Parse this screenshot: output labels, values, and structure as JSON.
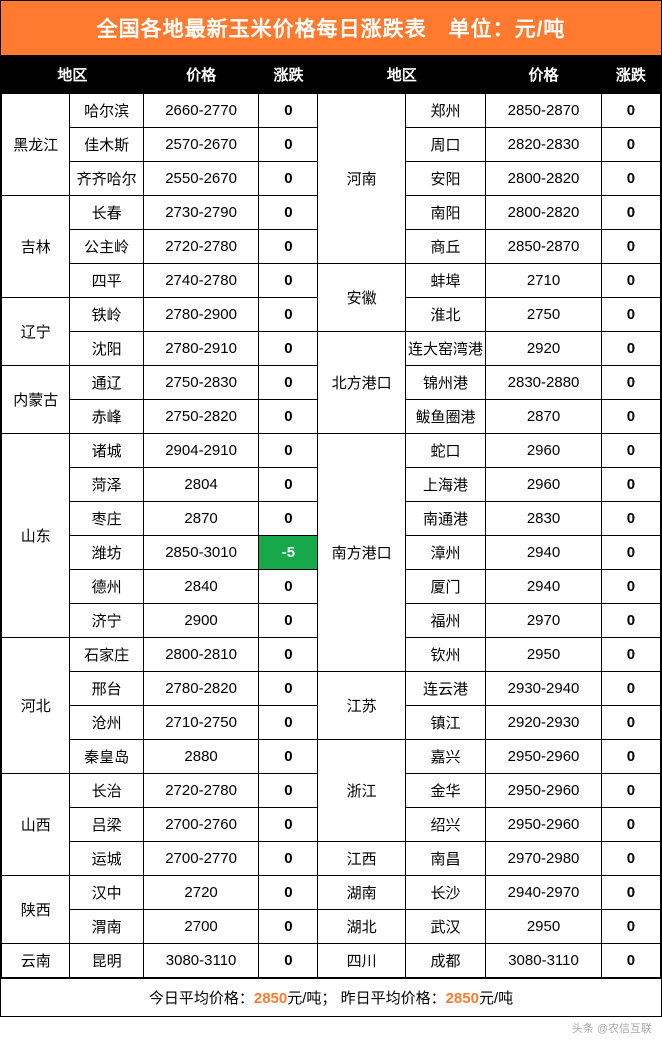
{
  "title": "全国各地最新玉米价格每日涨跌表　单位：元/吨",
  "headers": {
    "region": "地区",
    "price": "价格",
    "change": "涨跌"
  },
  "footer": {
    "t1": "今日平均价格：",
    "v1": "2850",
    "u1": "元/吨；",
    "t2": "昨日平均价格：",
    "v2": "2850",
    "u2": "元/吨"
  },
  "watermark": "头条 @农信互联",
  "leftGroups": [
    {
      "prov": "黑龙江",
      "rows": [
        {
          "city": "哈尔滨",
          "price": "2660-2770",
          "chg": "0"
        },
        {
          "city": "佳木斯",
          "price": "2570-2670",
          "chg": "0"
        },
        {
          "city": "齐齐哈尔",
          "price": "2550-2670",
          "chg": "0"
        }
      ]
    },
    {
      "prov": "吉林",
      "rows": [
        {
          "city": "长春",
          "price": "2730-2790",
          "chg": "0"
        },
        {
          "city": "公主岭",
          "price": "2720-2780",
          "chg": "0"
        },
        {
          "city": "四平",
          "price": "2740-2780",
          "chg": "0"
        }
      ]
    },
    {
      "prov": "辽宁",
      "rows": [
        {
          "city": "铁岭",
          "price": "2780-2900",
          "chg": "0"
        },
        {
          "city": "沈阳",
          "price": "2780-2910",
          "chg": "0"
        }
      ]
    },
    {
      "prov": "内蒙古",
      "rows": [
        {
          "city": "通辽",
          "price": "2750-2830",
          "chg": "0"
        },
        {
          "city": "赤峰",
          "price": "2750-2820",
          "chg": "0"
        }
      ]
    },
    {
      "prov": "山东",
      "rows": [
        {
          "city": "诸城",
          "price": "2904-2910",
          "chg": "0"
        },
        {
          "city": "菏泽",
          "price": "2804",
          "chg": "0"
        },
        {
          "city": "枣庄",
          "price": "2870",
          "chg": "0"
        },
        {
          "city": "潍坊",
          "price": "2850-3010",
          "chg": "-5",
          "neg": true
        },
        {
          "city": "德州",
          "price": "2840",
          "chg": "0"
        },
        {
          "city": "济宁",
          "price": "2900",
          "chg": "0"
        }
      ]
    },
    {
      "prov": "河北",
      "rows": [
        {
          "city": "石家庄",
          "price": "2800-2810",
          "chg": "0"
        },
        {
          "city": "邢台",
          "price": "2780-2820",
          "chg": "0"
        },
        {
          "city": "沧州",
          "price": "2710-2750",
          "chg": "0"
        },
        {
          "city": "秦皇岛",
          "price": "2880",
          "chg": "0"
        }
      ]
    },
    {
      "prov": "山西",
      "rows": [
        {
          "city": "长治",
          "price": "2720-2780",
          "chg": "0"
        },
        {
          "city": "吕梁",
          "price": "2700-2760",
          "chg": "0"
        },
        {
          "city": "运城",
          "price": "2700-2770",
          "chg": "0"
        }
      ]
    },
    {
      "prov": "陕西",
      "rows": [
        {
          "city": "汉中",
          "price": "2720",
          "chg": "0"
        },
        {
          "city": "渭南",
          "price": "2700",
          "chg": "0"
        }
      ]
    },
    {
      "prov": "云南",
      "rows": [
        {
          "city": "昆明",
          "price": "3080-3110",
          "chg": "0"
        }
      ]
    }
  ],
  "rightGroups": [
    {
      "prov": "河南",
      "rows": [
        {
          "city": "郑州",
          "price": "2850-2870",
          "chg": "0"
        },
        {
          "city": "周口",
          "price": "2820-2830",
          "chg": "0"
        },
        {
          "city": "安阳",
          "price": "2800-2820",
          "chg": "0"
        },
        {
          "city": "南阳",
          "price": "2800-2820",
          "chg": "0"
        },
        {
          "city": "商丘",
          "price": "2850-2870",
          "chg": "0"
        }
      ]
    },
    {
      "prov": "安徽",
      "rows": [
        {
          "city": "蚌埠",
          "price": "2710",
          "chg": "0"
        },
        {
          "city": "淮北",
          "price": "2750",
          "chg": "0"
        }
      ]
    },
    {
      "prov": "北方港口",
      "rows": [
        {
          "city": "连大窑湾港",
          "price": "2920",
          "chg": "0"
        },
        {
          "city": "锦州港",
          "price": "2830-2880",
          "chg": "0"
        },
        {
          "city": "鲅鱼圈港",
          "price": "2870",
          "chg": "0"
        }
      ]
    },
    {
      "prov": "南方港口",
      "rows": [
        {
          "city": "蛇口",
          "price": "2960",
          "chg": "0"
        },
        {
          "city": "上海港",
          "price": "2960",
          "chg": "0"
        },
        {
          "city": "南通港",
          "price": "2830",
          "chg": "0"
        },
        {
          "city": "漳州",
          "price": "2940",
          "chg": "0"
        },
        {
          "city": "厦门",
          "price": "2940",
          "chg": "0"
        },
        {
          "city": "福州",
          "price": "2970",
          "chg": "0"
        },
        {
          "city": "钦州",
          "price": "2950",
          "chg": "0"
        }
      ]
    },
    {
      "prov": "江苏",
      "rows": [
        {
          "city": "连云港",
          "price": "2930-2940",
          "chg": "0"
        },
        {
          "city": "镇江",
          "price": "2920-2930",
          "chg": "0"
        }
      ]
    },
    {
      "prov": "浙江",
      "rows": [
        {
          "city": "嘉兴",
          "price": "2950-2960",
          "chg": "0"
        },
        {
          "city": "金华",
          "price": "2950-2960",
          "chg": "0"
        },
        {
          "city": "绍兴",
          "price": "2950-2960",
          "chg": "0"
        }
      ]
    },
    {
      "prov": "江西",
      "rows": [
        {
          "city": "南昌",
          "price": "2970-2980",
          "chg": "0"
        }
      ]
    },
    {
      "prov": "湖南",
      "rows": [
        {
          "city": "长沙",
          "price": "2940-2970",
          "chg": "0"
        }
      ]
    },
    {
      "prov": "湖北",
      "rows": [
        {
          "city": "武汉",
          "price": "2950",
          "chg": "0"
        }
      ]
    },
    {
      "prov": "四川",
      "rows": [
        {
          "city": "成都",
          "price": "3080-3110",
          "chg": "0"
        }
      ]
    }
  ]
}
